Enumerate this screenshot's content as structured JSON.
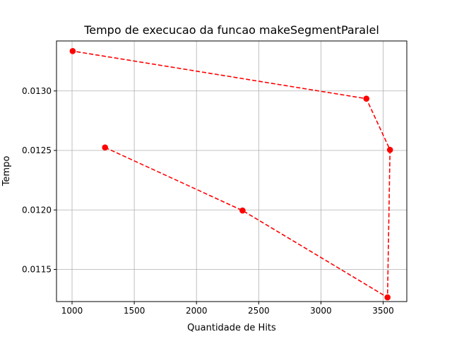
{
  "chart_data": {
    "type": "line",
    "title": "Tempo de execucao da funcao makeSegmentParalel",
    "xlabel": "Quantidade de Hits",
    "ylabel": "Tempo",
    "xlim": [
      875,
      3690
    ],
    "ylim": [
      0.01123,
      0.01342
    ],
    "xticks": [
      1000,
      1500,
      2000,
      2500,
      3000,
      3500
    ],
    "xtick_labels": [
      "1000",
      "1500",
      "2000",
      "2500",
      "3000",
      "3500"
    ],
    "yticks": [
      0.0115,
      0.012,
      0.0125,
      0.013
    ],
    "ytick_labels": [
      "0.0115",
      "0.0120",
      "0.0125",
      "0.0130"
    ],
    "grid": true,
    "legend": "none",
    "series": [
      {
        "color": "#ff0000",
        "line_style": "dashed",
        "marker": "circle",
        "x": [
          1265,
          2370,
          3535,
          3555,
          3365,
          1005
        ],
        "y": [
          0.012525,
          0.011995,
          0.011265,
          0.012505,
          0.012935,
          0.013335
        ]
      }
    ]
  }
}
